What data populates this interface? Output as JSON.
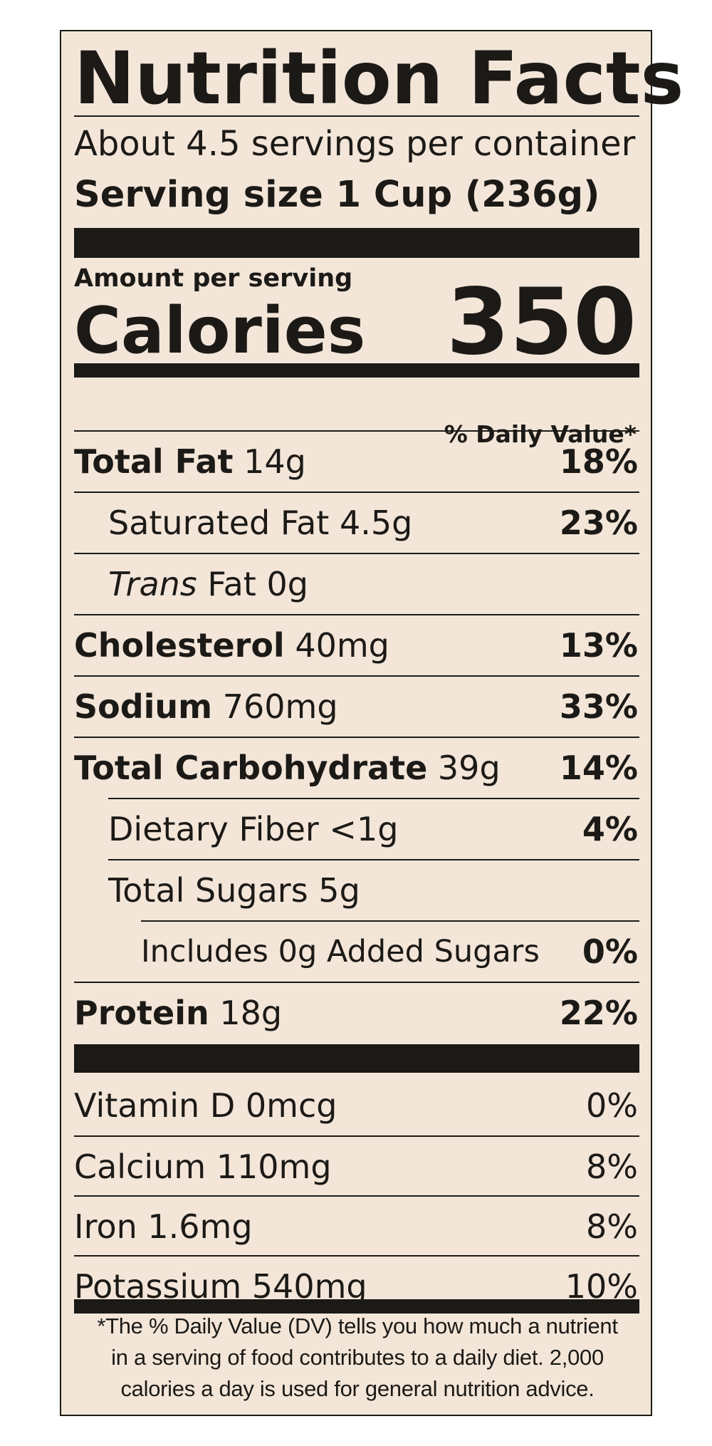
{
  "label": {
    "title": "Nutrition Facts",
    "servings_per_container": "About 4.5 servings per container",
    "serving_size": "Serving size 1 Cup (236g)",
    "amount_per_serving": "Amount per serving",
    "calories_label": "Calories",
    "calories_value": "350",
    "daily_value_header": "% Daily Value*"
  },
  "nutrients": [
    {
      "name": "Total Fat",
      "amount": "14g",
      "dv": "18%"
    },
    {
      "name": "Saturated Fat",
      "amount": "4.5g",
      "dv": "23%"
    },
    {
      "name_italic": "Trans",
      "name": "Fat",
      "amount": "0g",
      "dv": ""
    },
    {
      "name": "Cholesterol",
      "amount": "40mg",
      "dv": "13%"
    },
    {
      "name": "Sodium",
      "amount": "760mg",
      "dv": "33%"
    },
    {
      "name": "Total Carbohydrate",
      "amount": "39g",
      "dv": "14%"
    },
    {
      "name": "Dietary Fiber",
      "amount": "<1g",
      "dv": "4%"
    },
    {
      "name": "Total Sugars",
      "amount": "5g",
      "dv": ""
    },
    {
      "name": "Includes 0g Added Sugars",
      "amount": "",
      "dv": "0%"
    },
    {
      "name": "Protein",
      "amount": "18g",
      "dv": "22%"
    }
  ],
  "vitamins": [
    {
      "name": "Vitamin D",
      "amount": "0mcg",
      "dv": "0%"
    },
    {
      "name": "Calcium",
      "amount": "110mg",
      "dv": "8%"
    },
    {
      "name": "Iron",
      "amount": "1.6mg",
      "dv": "8%"
    },
    {
      "name": "Potassium",
      "amount": "540mg",
      "dv": "10%"
    }
  ],
  "footnote": [
    "*The % Daily Value (DV) tells you how much a nutrient",
    "in a serving of food contributes to a daily diet. 2,000",
    "calories a day is used for general nutrition advice."
  ],
  "colors": {
    "background": "#f3e6d8",
    "ink": "#1c1a17"
  }
}
